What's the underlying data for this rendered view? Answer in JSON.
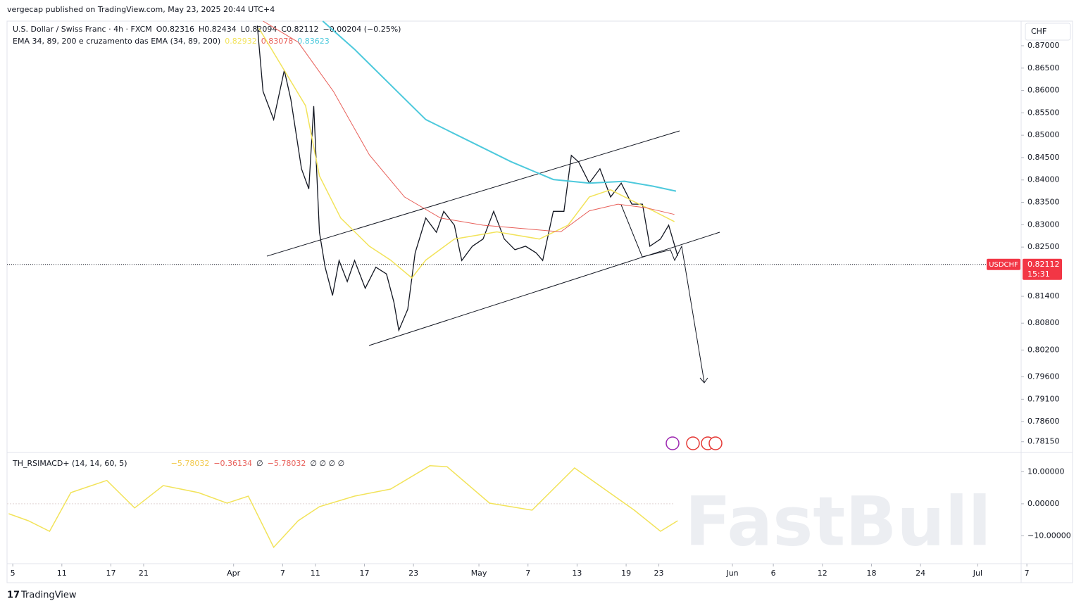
{
  "header": {
    "publisher": "vergecap published on TradingView.com, May 23, 2025 20:44 UTC+4",
    "symbol": "U.S. Dollar / Swiss Franc · 4h · FXCM",
    "open": "O0.82316",
    "high": "H0.82434",
    "low": "L0.82094",
    "close": "C0.82112",
    "change": "−0.00204 (−0.25%)",
    "ema_legend": "EMA 34, 89, 200 e cruzamento das EMA (34, 89, 200)",
    "currency": "CHF"
  },
  "price_tag": {
    "symbol": "USDCHF",
    "price": "0.82112",
    "countdown": "15:31"
  },
  "indicator_legend": {
    "name": "TH_RSIMACD+ (14, 14, 60, 5)",
    "values": [
      "−5.78032",
      "−0.36134",
      "∅",
      "−5.78032",
      "∅ ∅ ∅ ∅"
    ]
  },
  "footer": "TradingView",
  "watermark": "FastBull",
  "chart_data": [
    {
      "type": "line",
      "xlim": [
        4.3,
        128.3
      ],
      "xticks": [
        5,
        11,
        17,
        21,
        {
          "value": 32,
          "label": "Apr"
        },
        {
          "value": 38,
          "label": "7"
        },
        {
          "value": 42,
          "label": "11"
        },
        {
          "value": 48,
          "label": "17"
        },
        {
          "value": 54,
          "label": "23"
        },
        {
          "value": 62,
          "label": "May"
        },
        {
          "value": 68,
          "label": "7"
        },
        {
          "value": 74,
          "label": "13"
        },
        {
          "value": 80,
          "label": "19"
        },
        {
          "value": 84,
          "label": "23"
        },
        {
          "value": 93,
          "label": "Jun"
        },
        {
          "value": 98,
          "label": "6"
        },
        {
          "value": 104,
          "label": "12"
        },
        {
          "value": 110,
          "label": "18"
        },
        {
          "value": 116,
          "label": "24"
        },
        {
          "value": 123,
          "label": "Jul"
        },
        {
          "value": 129,
          "label": "7"
        }
      ],
      "ylim": [
        0.7791,
        0.8755
      ],
      "yticks": [
        {
          "value": 0.87,
          "label": "0.87000"
        },
        {
          "value": 0.865,
          "label": "0.86500"
        },
        {
          "value": 0.86,
          "label": "0.86000"
        },
        {
          "value": 0.855,
          "label": "0.85500"
        },
        {
          "value": 0.85,
          "label": "0.85000"
        },
        {
          "value": 0.845,
          "label": "0.84500"
        },
        {
          "value": 0.84,
          "label": "0.84000"
        },
        {
          "value": 0.835,
          "label": "0.83500"
        },
        {
          "value": 0.83,
          "label": "0.83000"
        },
        {
          "value": 0.825,
          "label": "0.82500"
        },
        {
          "value": 0.814,
          "label": "0.81400"
        },
        {
          "value": 0.808,
          "label": "0.80800"
        },
        {
          "value": 0.802,
          "label": "0.80200"
        },
        {
          "value": 0.796,
          "label": "0.79600"
        },
        {
          "value": 0.791,
          "label": "0.79100"
        },
        {
          "value": 0.786,
          "label": "0.78600"
        },
        {
          "value": 0.7815,
          "label": "0.78150"
        }
      ],
      "current_price": 0.82112,
      "series": [
        {
          "color": "#131722",
          "width": 1.3,
          "x": [
            34.9,
            35.6,
            36.9,
            38.2,
            39.0,
            40.3,
            41.2,
            41.8,
            42.5,
            43.2,
            44.1,
            44.9,
            45.9,
            46.8,
            48.1,
            49.4,
            50.7,
            51.6,
            52.2,
            53.3,
            54.2,
            55.5,
            56.8,
            57.7,
            59.0,
            59.9,
            61.2,
            62.5,
            63.8,
            65.1,
            66.4,
            67.7,
            69.0,
            69.8,
            71.1,
            72.4,
            73.3,
            74.2,
            75.5,
            76.8,
            78.1,
            79.4,
            80.7,
            82.0,
            82.9,
            84.2,
            85.2,
            86.3
          ],
          "values": [
            0.8745,
            0.8598,
            0.8535,
            0.8645,
            0.858,
            0.8425,
            0.838,
            0.8565,
            0.8283,
            0.8205,
            0.8142,
            0.822,
            0.8173,
            0.822,
            0.8158,
            0.8205,
            0.819,
            0.8127,
            0.8064,
            0.8111,
            0.8237,
            0.8315,
            0.8283,
            0.833,
            0.8299,
            0.822,
            0.8252,
            0.8268,
            0.833,
            0.8268,
            0.8244,
            0.8252,
            0.8237,
            0.822,
            0.833,
            0.833,
            0.8455,
            0.844,
            0.8393,
            0.8425,
            0.8362,
            0.8393,
            0.8346,
            0.8346,
            0.8252,
            0.8268,
            0.8299,
            0.823
          ]
        },
        {
          "color": "#f2e35a",
          "width": 1.5,
          "legend_value": "0.82932",
          "x": [
            35.1,
            40.8,
            42.5,
            45.1,
            48.6,
            51.2,
            53.8,
            55.5,
            59.0,
            64.2,
            69.4,
            72.9,
            75.5,
            78.1,
            80.7,
            83.3,
            85.9
          ],
          "values": [
            0.8739,
            0.8566,
            0.8409,
            0.8315,
            0.8252,
            0.8221,
            0.8181,
            0.8221,
            0.8268,
            0.8284,
            0.8268,
            0.8299,
            0.8362,
            0.8378,
            0.8354,
            0.8331,
            0.8307
          ]
        },
        {
          "color": "#e8605a",
          "width": 1,
          "legend_value": "0.83078",
          "x": [
            35.6,
            39.9,
            44.2,
            48.6,
            52.9,
            57.3,
            62.5,
            67.7,
            72.0,
            75.5,
            79.0,
            82.4,
            85.9
          ],
          "values": [
            0.8755,
            0.8708,
            0.8598,
            0.8456,
            0.8362,
            0.8315,
            0.8299,
            0.8291,
            0.8284,
            0.8331,
            0.8346,
            0.8338,
            0.8323
          ]
        },
        {
          "color": "#4dc9dc",
          "width": 2,
          "legend_value": "0.83623",
          "x": [
            42.9,
            46.8,
            52.0,
            55.5,
            60.7,
            65.9,
            71.1,
            75.5,
            79.8,
            83.3,
            86.1
          ],
          "values": [
            0.8755,
            0.8692,
            0.8598,
            0.8535,
            0.8488,
            0.8441,
            0.8401,
            0.8393,
            0.8397,
            0.8386,
            0.8375
          ]
        }
      ]
    },
    {
      "type": "line",
      "xlim": [
        4.3,
        128.3
      ],
      "ylim": [
        -18.5,
        15.6
      ],
      "yticks": [
        {
          "value": 10,
          "label": "10.00000"
        },
        {
          "value": 0,
          "label": "0.00000"
        },
        {
          "value": -10,
          "label": "−10.00000"
        }
      ],
      "series": [
        {
          "color": "#f2e35a",
          "width": 1.5,
          "x": [
            4.5,
            6.9,
            9.5,
            12.1,
            16.5,
            19.9,
            23.4,
            27.7,
            31.2,
            33.8,
            36.9,
            39.9,
            42.5,
            46.8,
            51.2,
            56.0,
            58.1,
            63.3,
            68.5,
            73.7,
            81.0,
            84.2,
            86.3
          ],
          "values": [
            -3.1,
            -5.3,
            -8.6,
            3.5,
            7.3,
            -1.3,
            5.7,
            3.5,
            0.2,
            2.4,
            -13.6,
            -5.3,
            -0.9,
            2.4,
            4.6,
            11.9,
            11.6,
            0.2,
            -2.0,
            11.2,
            -2.0,
            -8.6,
            -5.3
          ]
        }
      ]
    }
  ]
}
